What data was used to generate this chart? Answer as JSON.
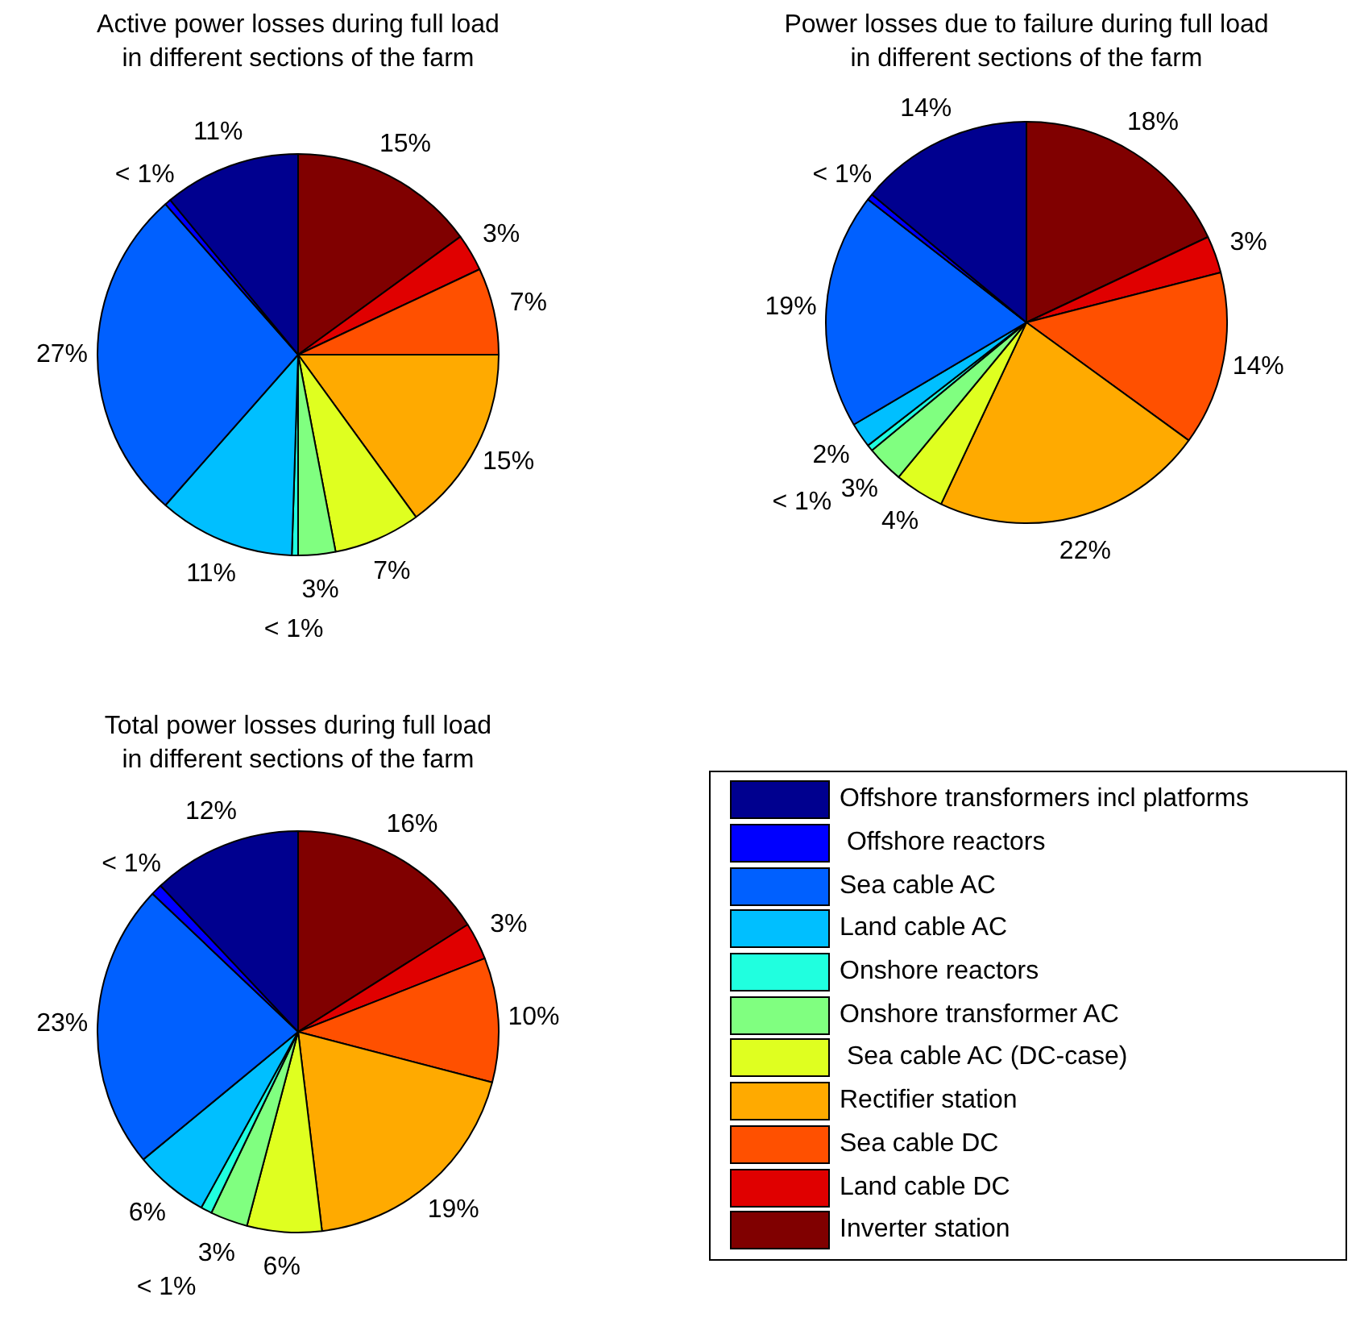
{
  "chart_data": [
    {
      "type": "pie",
      "title": "Active power losses during full load\nin different sections of the farm",
      "categories": [
        "Offshore transformers incl platforms",
        " Offshore reactors",
        "Sea cable AC",
        "Land cable AC",
        "Onshore reactors",
        "Onshore transformer AC",
        " Sea cable AC (DC-case)",
        "Rectifier station",
        "Sea cable DC",
        "Land cable DC",
        "Inverter station"
      ],
      "values": [
        11,
        0.5,
        27,
        11,
        0.5,
        3,
        7,
        15,
        7,
        3,
        15
      ],
      "value_labels": [
        "11%",
        "< 1%",
        "27%",
        "11%",
        "< 1%",
        "3%",
        "7%",
        "15%",
        "7%",
        "3%",
        "15%"
      ],
      "colors": [
        "#00008f",
        "#0000ff",
        "#0060ff",
        "#00bfff",
        "#20ffdf",
        "#80ff80",
        "#dfff20",
        "#ffaa00",
        "#ff5000",
        "#e00000",
        "#800000"
      ],
      "legend": "bottom right"
    },
    {
      "type": "pie",
      "title": "Power losses due to failure during full load\nin different sections of the farm",
      "categories": [
        null,
        null,
        null,
        null,
        null,
        null,
        null,
        null,
        null,
        null,
        null
      ],
      "values": [
        14,
        0.5,
        19,
        2,
        0.5,
        3,
        4,
        22,
        14,
        3,
        18
      ],
      "value_labels": [
        "14%",
        "< 1%",
        "19%",
        "2%",
        "< 1%",
        "3%",
        "4%",
        "22%",
        "14%",
        "3%",
        "18%"
      ],
      "colors": [
        "#00008f",
        "#0000ff",
        "#0060ff",
        "#00bfff",
        "#20ffdf",
        "#80ff80",
        "#dfff20",
        "#ffaa00",
        "#ff5000",
        "#e00000",
        "#800000"
      ]
    },
    {
      "type": "pie",
      "title": "Total power losses during full load\nin different sections of the farm",
      "categories": [
        null,
        null,
        null,
        null,
        null,
        null,
        null,
        null,
        null,
        null,
        null
      ],
      "values": [
        12,
        0.9,
        23,
        6,
        0.9,
        3,
        6,
        19,
        10,
        3,
        16
      ],
      "value_labels": [
        "12%",
        "< 1%",
        "23%",
        "6%",
        "< 1%",
        "3%",
        "6%",
        "19%",
        "10%",
        "3%",
        "16%"
      ],
      "colors": [
        "#00008f",
        "#0000ff",
        "#0060ff",
        "#00bfff",
        "#20ffdf",
        "#80ff80",
        "#dfff20",
        "#ffaa00",
        "#ff5000",
        "#e00000",
        "#800000"
      ]
    }
  ]
}
